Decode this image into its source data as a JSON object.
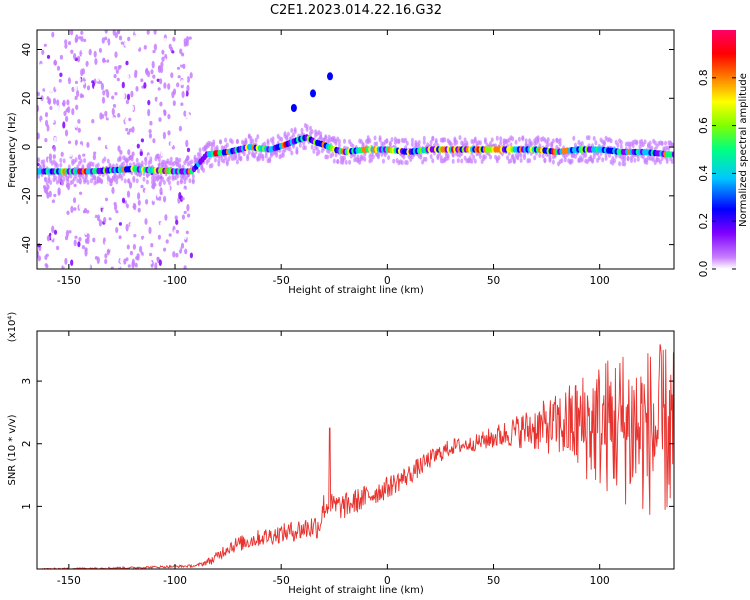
{
  "title": "C2E1.2023.014.22.16.G32",
  "chart_data": [
    {
      "type": "heatmap",
      "xlabel": "Height of straight line (km)",
      "ylabel": "Frequency (Hz)",
      "xlim": [
        -165,
        135
      ],
      "ylim": [
        -50,
        48
      ],
      "xticks": [
        -150,
        -100,
        -50,
        0,
        50,
        100
      ],
      "yticks": [
        -40,
        -20,
        0,
        20,
        40
      ],
      "colorbar": {
        "label": "Normalized spectral amplitude",
        "range": [
          0,
          1
        ],
        "ticks": [
          "0.0",
          "0.2",
          "0.4",
          "0.6",
          "0.8"
        ],
        "colors": [
          "#ffffff",
          "#c77dff",
          "#7f00ff",
          "#0000ff",
          "#00c8ff",
          "#00ff80",
          "#80ff00",
          "#ffff00",
          "#ff8000",
          "#ff0000",
          "#ff0066"
        ]
      },
      "trace": {
        "description": "frequency of main spectral line vs height",
        "x": [
          -160,
          -140,
          -120,
          -100,
          -92,
          -85,
          -75,
          -65,
          -55,
          -48,
          -42,
          -38,
          -34,
          -30,
          -25,
          -20,
          -10,
          0,
          10,
          20,
          30,
          40,
          50,
          60,
          70,
          80,
          90,
          100,
          110,
          120,
          133
        ],
        "y": [
          -10,
          -10,
          -9,
          -10,
          -10,
          -3,
          -2,
          0,
          -1,
          1,
          3,
          4,
          2,
          1,
          -1,
          -2,
          -1,
          -1,
          -2,
          -1,
          -1,
          -1,
          -1,
          -1,
          -1,
          -2,
          -1,
          -1,
          -2,
          -2,
          -3
        ]
      },
      "features": [
        {
          "x": -44,
          "y": 16,
          "label": ""
        },
        {
          "x": -35,
          "y": 22,
          "label": ""
        },
        {
          "x": -27,
          "y": 29,
          "label": ""
        }
      ]
    },
    {
      "type": "line",
      "xlabel": "Height of straight line (km)",
      "ylabel": "SNR (10 * v/v)",
      "y_multiplier": "(x10⁴)",
      "xlim": [
        -165,
        135
      ],
      "ylim": [
        0,
        3.8
      ],
      "xticks": [
        -150,
        -100,
        -50,
        0,
        50,
        100
      ],
      "yticks": [
        1,
        2,
        3
      ],
      "color": "#e8322e",
      "envelope": {
        "x": [
          -165,
          -120,
          -90,
          -82,
          -75,
          -60,
          -45,
          -32,
          -30,
          -20,
          -10,
          0,
          10,
          20,
          30,
          40,
          50,
          60,
          70,
          80,
          90,
          100,
          110,
          120,
          130,
          135
        ],
        "y": [
          0.0,
          0.02,
          0.05,
          0.15,
          0.35,
          0.5,
          0.6,
          0.7,
          1.0,
          1.0,
          1.15,
          1.3,
          1.5,
          1.75,
          1.95,
          2.0,
          2.1,
          2.2,
          2.25,
          2.3,
          2.3,
          2.3,
          2.3,
          2.2,
          2.2,
          2.2
        ]
      },
      "spread": {
        "x": [
          -165,
          -90,
          -75,
          -50,
          -30,
          0,
          40,
          60,
          80,
          90,
          100,
          110,
          120,
          130,
          135
        ],
        "y": [
          0.01,
          0.02,
          0.12,
          0.15,
          0.22,
          0.18,
          0.12,
          0.25,
          0.5,
          0.8,
          1.05,
          1.25,
          1.35,
          1.4,
          1.4
        ]
      },
      "spike": {
        "x": -27,
        "y": 2.25
      }
    }
  ]
}
